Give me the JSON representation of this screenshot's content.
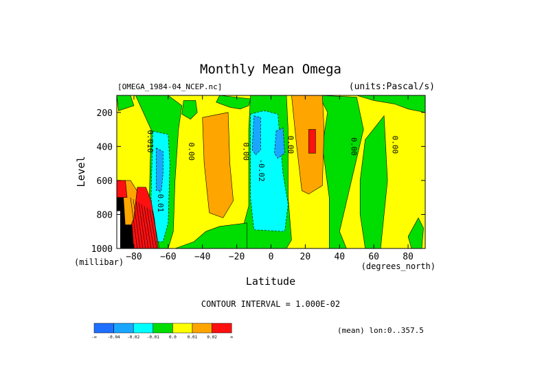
{
  "chart_data": {
    "type": "heatmap",
    "title": "Monthly Mean Omega",
    "subtitle_left": "[OMEGA_1984-04_NCEP.nc]",
    "subtitle_right": "(units:Pascal/s)",
    "xlabel": "Latitude",
    "x_units": "(degrees_north)",
    "ylabel": "Level",
    "y_units": "(millibar)",
    "xlim": [
      -90,
      90
    ],
    "ylim": [
      1000,
      100
    ],
    "x_ticks": [
      -80,
      -60,
      -40,
      -20,
      0,
      20,
      40,
      60,
      80
    ],
    "y_ticks": [
      200,
      400,
      600,
      800,
      1000
    ],
    "contour_interval_text": "CONTOUR INTERVAL = 1.000E-02",
    "mean_note": "(mean) lon:0..357.5",
    "contour_labels": [
      {
        "text": "0.010",
        "lat": -72,
        "lev": 370
      },
      {
        "text": "0.00",
        "lat": -48,
        "lev": 430
      },
      {
        "text": "0.00",
        "lat": -16,
        "lev": 430
      },
      {
        "text": "0.00",
        "lat": 10,
        "lev": 390
      },
      {
        "text": "-0.02",
        "lat": -7,
        "lev": 540
      },
      {
        "text": "-0.01",
        "lat": -66,
        "lev": 720
      },
      {
        "text": "0.00",
        "lat": 47,
        "lev": 400
      },
      {
        "text": "0.00",
        "lat": 71,
        "lev": 390
      }
    ],
    "color_scale": {
      "labels": [
        "-∞",
        "-0.04",
        "-0.02",
        "-0.01",
        "0.0",
        "0.01",
        "0.02",
        "∞"
      ],
      "colors": [
        "#1f6fff",
        "#1aa6ff",
        "#00ffff",
        "#00dd00",
        "#ffff00",
        "#ffa500",
        "#ff1010"
      ]
    },
    "colors": {
      "neg_strong": "#1f6fff",
      "neg_mid": "#1aa6ff",
      "neg_weak": "#00ffff",
      "near_zero_neg": "#00dd00",
      "near_zero_pos": "#ffff00",
      "pos_mid": "#ffa500",
      "pos_strong": "#ff1010",
      "missing": "#000000"
    }
  }
}
